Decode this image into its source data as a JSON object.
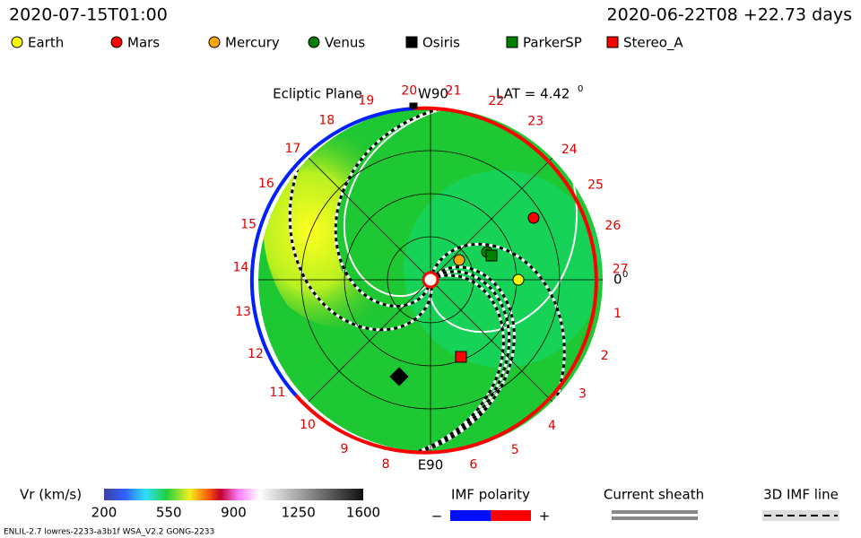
{
  "header": {
    "model_time": "2020-07-15T01:00",
    "run_start": "2020-06-22T08 +22.73 days"
  },
  "legend": [
    {
      "label": "Earth",
      "color": "#ffff00",
      "shape": "circle"
    },
    {
      "label": "Mars",
      "color": "#ff0000",
      "shape": "circle"
    },
    {
      "label": "Mercury",
      "color": "#ffa500",
      "shape": "circle"
    },
    {
      "label": "Venus",
      "color": "#008000",
      "shape": "circle"
    },
    {
      "label": "Osiris",
      "color": "#000000",
      "shape": "square"
    },
    {
      "label": "ParkerSP",
      "color": "#008000",
      "shape": "square"
    },
    {
      "label": "Stereo_A",
      "color": "#ff0000",
      "shape": "square"
    }
  ],
  "plot": {
    "title": "Ecliptic Plane",
    "top_label": "W90",
    "bottom_label": "E90",
    "latitude": "LAT = 4.42",
    "latitude_sup": "0",
    "right_label": "0",
    "right_sup": "0",
    "carrington": [
      "1",
      "2",
      "3",
      "4",
      "5",
      "6",
      null,
      "8",
      "9",
      "10",
      "11",
      "12",
      "13",
      "14",
      "15",
      "16",
      "17",
      "18",
      "19",
      "20",
      "21",
      "22",
      "23",
      "24",
      "25",
      "26",
      "27"
    ]
  },
  "colorbar": {
    "label": "Vr (km/s)",
    "range": [
      200,
      1600
    ],
    "ticks": [
      200,
      550,
      900,
      1250,
      1600
    ]
  },
  "imf": {
    "title": "IMF polarity",
    "minus": "−",
    "plus": "+"
  },
  "sheath": {
    "title": "Current sheath"
  },
  "imf_line": {
    "title": "3D IMF line"
  },
  "footer": "ENLIL-2.7 lowres-2233-a3b1f WSA_V2.2 GONG-2233"
}
